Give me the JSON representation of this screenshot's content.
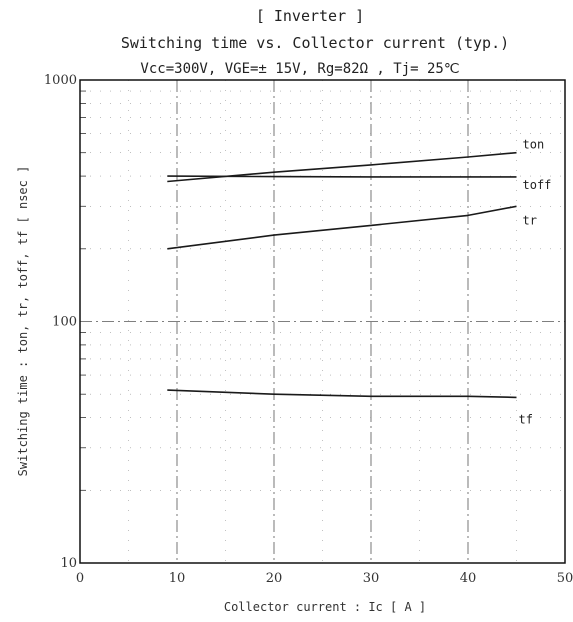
{
  "chart_data": {
    "type": "line",
    "title": "[ Inverter ]",
    "subtitle": "Switching time  vs.  Collector current  (typ.)",
    "conditions": "Vcc=300V, VGE=± 15V, Rg=82Ω , Tj= 25℃",
    "xlabel": "Collector current  :  Ic  [ A ]",
    "ylabel": "Switching time  :  ton, tr, toff, tf  [ nsec ]",
    "x_scale": "linear",
    "y_scale": "log",
    "xlim": [
      0,
      50
    ],
    "ylim": [
      10,
      1000
    ],
    "x_ticks": [
      "0",
      "10",
      "20",
      "30",
      "40",
      "50"
    ],
    "y_ticks": [
      "10",
      "100",
      "1000"
    ],
    "grid": true,
    "series": [
      {
        "name": "ton",
        "x": [
          9,
          20,
          30,
          40,
          45
        ],
        "y": [
          380,
          415,
          445,
          480,
          500
        ]
      },
      {
        "name": "toff",
        "x": [
          9,
          20,
          30,
          40,
          45
        ],
        "y": [
          400,
          398,
          397,
          397,
          397
        ]
      },
      {
        "name": "tr",
        "x": [
          9,
          20,
          30,
          40,
          45
        ],
        "y": [
          200,
          228,
          250,
          275,
          300
        ]
      },
      {
        "name": "tf",
        "x": [
          9,
          20,
          30,
          40,
          45
        ],
        "y": [
          52,
          50,
          49,
          49,
          48.5
        ]
      }
    ],
    "colors": {
      "line": "#1a1a1a",
      "grid": "#555555",
      "frame": "#111111"
    }
  }
}
